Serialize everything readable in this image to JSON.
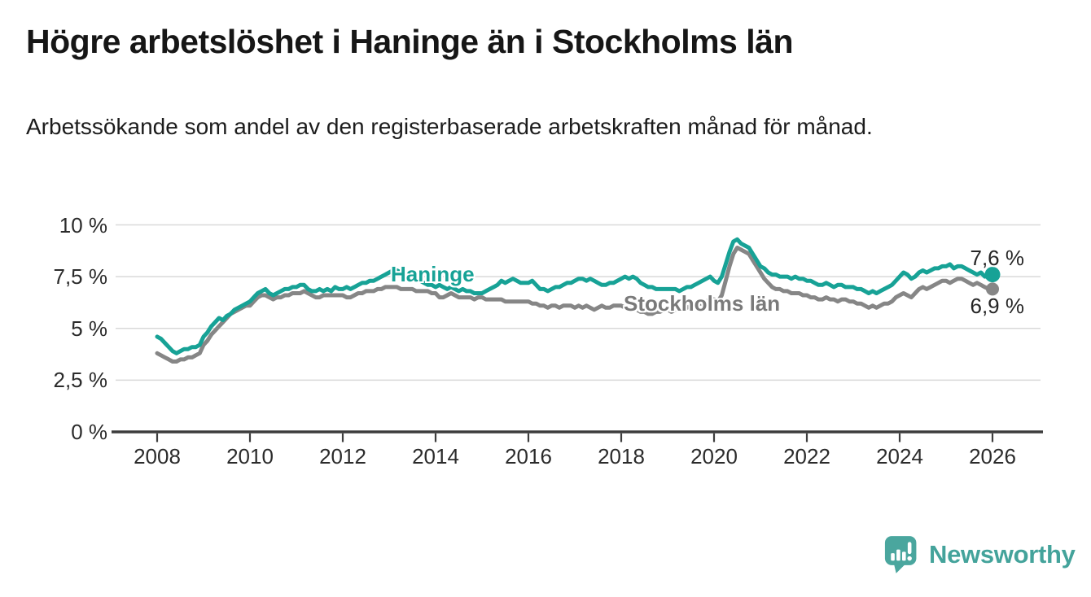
{
  "page": {
    "title": "Högre arbetslöshet i Haninge än i Stockholms län",
    "subtitle": "Arbetssökande som andel av den registerbaserade arbetskraften månad för månad."
  },
  "footer": {
    "brand_name": "Newsworthy"
  },
  "colors": {
    "haninge": "#17a296",
    "stockholms_lan": "#868686",
    "axis": "#3d3d3d",
    "grid": "#d9d9d9",
    "tick_text": "#2b2b2b",
    "value_label_text": "#262626",
    "brand_teal": "#4aa69e",
    "background": "#ffffff"
  },
  "chart_data": {
    "type": "line",
    "title": "Högre arbetslöshet i Haninge än i Stockholms län",
    "subtitle": "Arbetssökande som andel av den registerbaserade arbetskraften månad för månad.",
    "unit": "%",
    "grid": true,
    "legend": "inline-labels",
    "x_start_year": 2008,
    "points_per_year": 12,
    "x_axis_ticks": [
      2008,
      2010,
      2012,
      2014,
      2016,
      2018,
      2020,
      2022,
      2024,
      2026
    ],
    "y_axis": {
      "range": [
        0,
        10
      ],
      "ticks": [
        {
          "value": 0,
          "label": "0 %"
        },
        {
          "value": 2.5,
          "label": "2,5 %"
        },
        {
          "value": 5,
          "label": "5 %"
        },
        {
          "value": 7.5,
          "label": "7,5 %"
        },
        {
          "value": 10,
          "label": "10 %"
        }
      ]
    },
    "series": [
      {
        "name": "Haninge",
        "color": "#17a296",
        "end_label": "7,6 %",
        "end_value": 7.6,
        "values": [
          4.6,
          4.5,
          4.3,
          4.1,
          3.9,
          3.8,
          3.9,
          4.0,
          4.0,
          4.1,
          4.1,
          4.2,
          4.6,
          4.8,
          5.1,
          5.3,
          5.5,
          5.4,
          5.6,
          5.7,
          5.9,
          6.0,
          6.1,
          6.2,
          6.3,
          6.5,
          6.7,
          6.8,
          6.9,
          6.7,
          6.6,
          6.7,
          6.8,
          6.9,
          6.9,
          7.0,
          7.0,
          7.1,
          7.1,
          6.9,
          6.8,
          6.8,
          6.9,
          6.8,
          6.9,
          6.8,
          7.0,
          6.9,
          6.9,
          7.0,
          6.9,
          7.0,
          7.1,
          7.2,
          7.2,
          7.3,
          7.3,
          7.4,
          7.5,
          7.6,
          7.7,
          7.8,
          7.8,
          7.7,
          7.6,
          7.5,
          7.4,
          7.3,
          7.3,
          7.2,
          7.1,
          7.1,
          7.0,
          7.1,
          7.0,
          6.9,
          7.0,
          6.9,
          6.8,
          6.9,
          6.8,
          6.8,
          6.7,
          6.7,
          6.7,
          6.8,
          6.9,
          7.0,
          7.1,
          7.3,
          7.2,
          7.3,
          7.4,
          7.3,
          7.2,
          7.2,
          7.2,
          7.3,
          7.1,
          6.9,
          6.9,
          6.8,
          6.9,
          7.0,
          7.0,
          7.1,
          7.2,
          7.2,
          7.3,
          7.4,
          7.4,
          7.3,
          7.4,
          7.3,
          7.2,
          7.1,
          7.1,
          7.2,
          7.2,
          7.3,
          7.4,
          7.5,
          7.4,
          7.5,
          7.4,
          7.2,
          7.1,
          7.0,
          7.0,
          6.9,
          6.9,
          6.9,
          6.9,
          6.9,
          6.9,
          6.8,
          6.9,
          7.0,
          7.0,
          7.1,
          7.2,
          7.3,
          7.4,
          7.5,
          7.3,
          7.2,
          7.5,
          8.1,
          8.7,
          9.2,
          9.3,
          9.1,
          9.0,
          8.9,
          8.6,
          8.3,
          8.0,
          7.9,
          7.7,
          7.6,
          7.6,
          7.5,
          7.5,
          7.5,
          7.4,
          7.5,
          7.4,
          7.4,
          7.3,
          7.3,
          7.2,
          7.1,
          7.1,
          7.2,
          7.1,
          7.0,
          7.1,
          7.1,
          7.0,
          7.0,
          7.0,
          6.9,
          6.9,
          6.8,
          6.7,
          6.8,
          6.7,
          6.8,
          6.9,
          7.0,
          7.1,
          7.3,
          7.5,
          7.7,
          7.6,
          7.4,
          7.5,
          7.7,
          7.8,
          7.7,
          7.8,
          7.9,
          7.9,
          8.0,
          8.0,
          8.1,
          7.9,
          8.0,
          8.0,
          7.9,
          7.8,
          7.7,
          7.6,
          7.7,
          7.5,
          7.6,
          7.6
        ]
      },
      {
        "name": "Stockholms län",
        "color": "#868686",
        "end_label": "6,9 %",
        "end_value": 6.9,
        "values": [
          3.8,
          3.7,
          3.6,
          3.5,
          3.4,
          3.4,
          3.5,
          3.5,
          3.6,
          3.6,
          3.7,
          3.8,
          4.2,
          4.4,
          4.7,
          4.9,
          5.1,
          5.3,
          5.5,
          5.7,
          5.8,
          5.9,
          6.0,
          6.1,
          6.1,
          6.3,
          6.5,
          6.6,
          6.6,
          6.5,
          6.4,
          6.5,
          6.5,
          6.6,
          6.6,
          6.7,
          6.7,
          6.7,
          6.8,
          6.7,
          6.6,
          6.5,
          6.5,
          6.6,
          6.6,
          6.6,
          6.6,
          6.6,
          6.6,
          6.5,
          6.5,
          6.6,
          6.7,
          6.7,
          6.8,
          6.8,
          6.8,
          6.9,
          6.9,
          7.0,
          7.0,
          7.0,
          7.0,
          6.9,
          6.9,
          6.9,
          6.9,
          6.8,
          6.8,
          6.8,
          6.8,
          6.7,
          6.7,
          6.5,
          6.5,
          6.6,
          6.7,
          6.6,
          6.5,
          6.5,
          6.5,
          6.5,
          6.4,
          6.5,
          6.5,
          6.4,
          6.4,
          6.4,
          6.4,
          6.4,
          6.3,
          6.3,
          6.3,
          6.3,
          6.3,
          6.3,
          6.3,
          6.2,
          6.2,
          6.1,
          6.1,
          6.0,
          6.1,
          6.1,
          6.0,
          6.1,
          6.1,
          6.1,
          6.0,
          6.1,
          6.0,
          6.1,
          6.0,
          5.9,
          6.0,
          6.1,
          6.0,
          6.0,
          6.1,
          6.1,
          6.1,
          6.0,
          6.0,
          5.9,
          5.9,
          5.8,
          5.8,
          5.7,
          5.7,
          5.8,
          5.8,
          5.9,
          5.9,
          5.8,
          5.9,
          5.9,
          6.0,
          6.0,
          6.1,
          6.1,
          6.2,
          6.2,
          6.3,
          6.4,
          6.4,
          6.3,
          6.6,
          7.3,
          8.0,
          8.6,
          8.9,
          8.8,
          8.7,
          8.6,
          8.3,
          8.0,
          7.7,
          7.4,
          7.2,
          7.0,
          6.9,
          6.9,
          6.8,
          6.8,
          6.7,
          6.7,
          6.7,
          6.6,
          6.6,
          6.5,
          6.5,
          6.4,
          6.4,
          6.5,
          6.4,
          6.4,
          6.3,
          6.4,
          6.4,
          6.3,
          6.3,
          6.2,
          6.2,
          6.1,
          6.0,
          6.1,
          6.0,
          6.1,
          6.2,
          6.2,
          6.3,
          6.5,
          6.6,
          6.7,
          6.6,
          6.5,
          6.7,
          6.9,
          7.0,
          6.9,
          7.0,
          7.1,
          7.2,
          7.3,
          7.3,
          7.2,
          7.3,
          7.4,
          7.4,
          7.3,
          7.2,
          7.1,
          7.2,
          7.1,
          7.0,
          6.9,
          6.9
        ]
      }
    ]
  }
}
